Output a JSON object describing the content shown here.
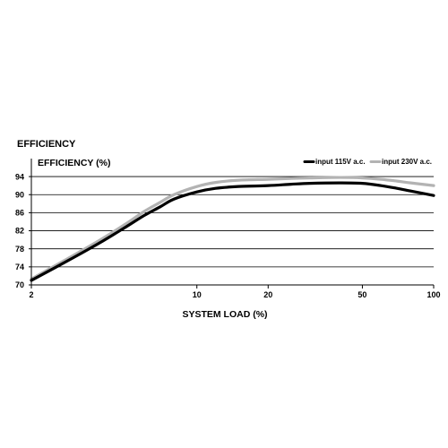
{
  "chart_data": {
    "type": "line",
    "title": "EFFICIENCY",
    "ylabel": "EFFICIENCY (%)",
    "xlabel": "SYSTEM LOAD (%)",
    "x_ticks": [
      2,
      10,
      20,
      50,
      100
    ],
    "y_ticks": [
      70,
      74,
      78,
      82,
      86,
      90,
      94
    ],
    "xlim": [
      2,
      100
    ],
    "ylim": [
      70,
      96
    ],
    "x_scale": "log",
    "grid": "horizontal",
    "legend_position": "top-right",
    "series": [
      {
        "name": "input 115V a.c.",
        "color": "#000000",
        "x": [
          2,
          3,
          4,
          5,
          6,
          7,
          8,
          10,
          12,
          15,
          20,
          25,
          30,
          40,
          50,
          60,
          70,
          80,
          100
        ],
        "y": [
          71.0,
          76.0,
          79.7,
          82.8,
          85.4,
          87.3,
          89.0,
          90.6,
          91.4,
          91.8,
          92.0,
          92.3,
          92.5,
          92.6,
          92.5,
          92.0,
          91.4,
          90.8,
          89.8
        ]
      },
      {
        "name": "input 230V a.c.",
        "color": "#b3b3b3",
        "x": [
          2,
          3,
          4,
          5,
          6,
          7,
          8,
          10,
          12,
          15,
          20,
          25,
          30,
          40,
          50,
          60,
          70,
          80,
          100
        ],
        "y": [
          71.3,
          76.5,
          80.3,
          83.5,
          86.3,
          88.3,
          90.0,
          91.8,
          92.7,
          93.2,
          93.4,
          93.6,
          93.7,
          93.8,
          93.7,
          93.4,
          93.0,
          92.6,
          92.0
        ]
      }
    ]
  }
}
